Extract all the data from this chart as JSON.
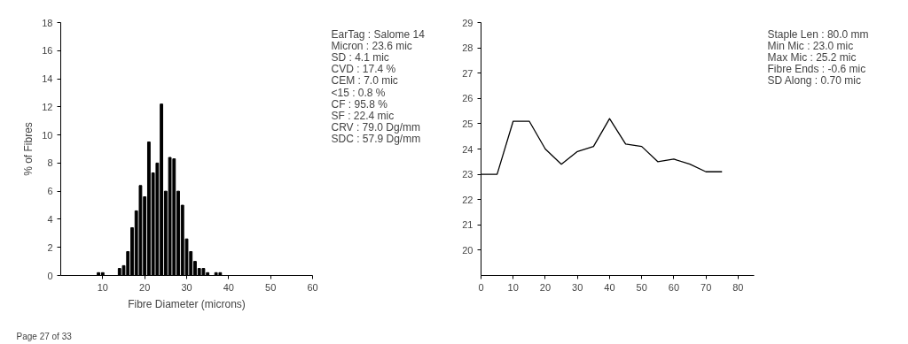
{
  "chart_data": [
    {
      "type": "histogram",
      "xlabel": "Fibre Diameter (microns)",
      "ylabel": "% of Fibres",
      "color": "#000000",
      "bins": [
        8.5,
        9.5,
        10.5,
        11.5,
        12.5,
        13.5,
        14.5,
        15.5,
        16.5,
        17.5,
        18.5,
        19.5,
        20.5,
        21.5,
        22.5,
        23.5,
        24.5,
        25.5,
        26.5,
        27.5,
        28.5,
        29.5,
        30.5,
        31.5,
        32.5,
        33.5,
        34.5,
        35.5,
        36.5,
        37.5,
        38.5
      ],
      "values": [
        0.2,
        0.2,
        0,
        0,
        0,
        0.5,
        0.7,
        1.7,
        3.4,
        4.6,
        6.4,
        5.6,
        9.5,
        7.3,
        8.0,
        12.2,
        6.0,
        8.4,
        8.3,
        6.0,
        5.0,
        2.6,
        1.7,
        1.0,
        0.5,
        0.5,
        0.2,
        0,
        0.2,
        0.2
      ],
      "xlim": [
        0,
        60
      ],
      "xticks": [
        10,
        20,
        30,
        40,
        50,
        60
      ],
      "ylim": [
        0,
        18
      ],
      "yticks": [
        0,
        2,
        4,
        6,
        8,
        10,
        12,
        14,
        16,
        18
      ],
      "grid": false,
      "annotations": [
        "EarTag : Salome 14",
        "Micron : 23.6 mic",
        "SD : 4.1 mic",
        "CVD : 17.4 %",
        "CEM : 7.0 mic",
        "<15 : 0.8 %",
        "CF : 95.8 %",
        "SF : 22.4 mic",
        "CRV : 79.0 Dg/mm",
        "SDC : 57.9 Dg/mm",
        "Page 27 of 33"
      ]
    },
    {
      "type": "line",
      "color": "#000000",
      "marker": "none",
      "line_style": "solid",
      "x": [
        0,
        5,
        10,
        15,
        20,
        25,
        30,
        35,
        40,
        45,
        50,
        55,
        60,
        65,
        70,
        75
      ],
      "values": [
        23.0,
        23.0,
        25.1,
        25.1,
        24.0,
        23.4,
        23.9,
        24.1,
        25.2,
        24.2,
        24.1,
        23.5,
        23.6,
        23.4,
        23.1,
        23.1
      ],
      "xlim": [
        0,
        85
      ],
      "xticks": [
        0,
        10,
        20,
        30,
        40,
        50,
        60,
        70,
        80
      ],
      "ylim": [
        19,
        29
      ],
      "yticks": [
        20,
        21,
        22,
        23,
        24,
        25,
        26,
        27,
        28,
        29
      ],
      "grid": false,
      "annotations": [
        "Staple Len : 80.0 mm",
        "Min Mic : 23.0 mic",
        "Max Mic : 25.2 mic",
        "Fibre Ends : -0.6 mic",
        "SD Along : 0.70 mic"
      ]
    }
  ]
}
